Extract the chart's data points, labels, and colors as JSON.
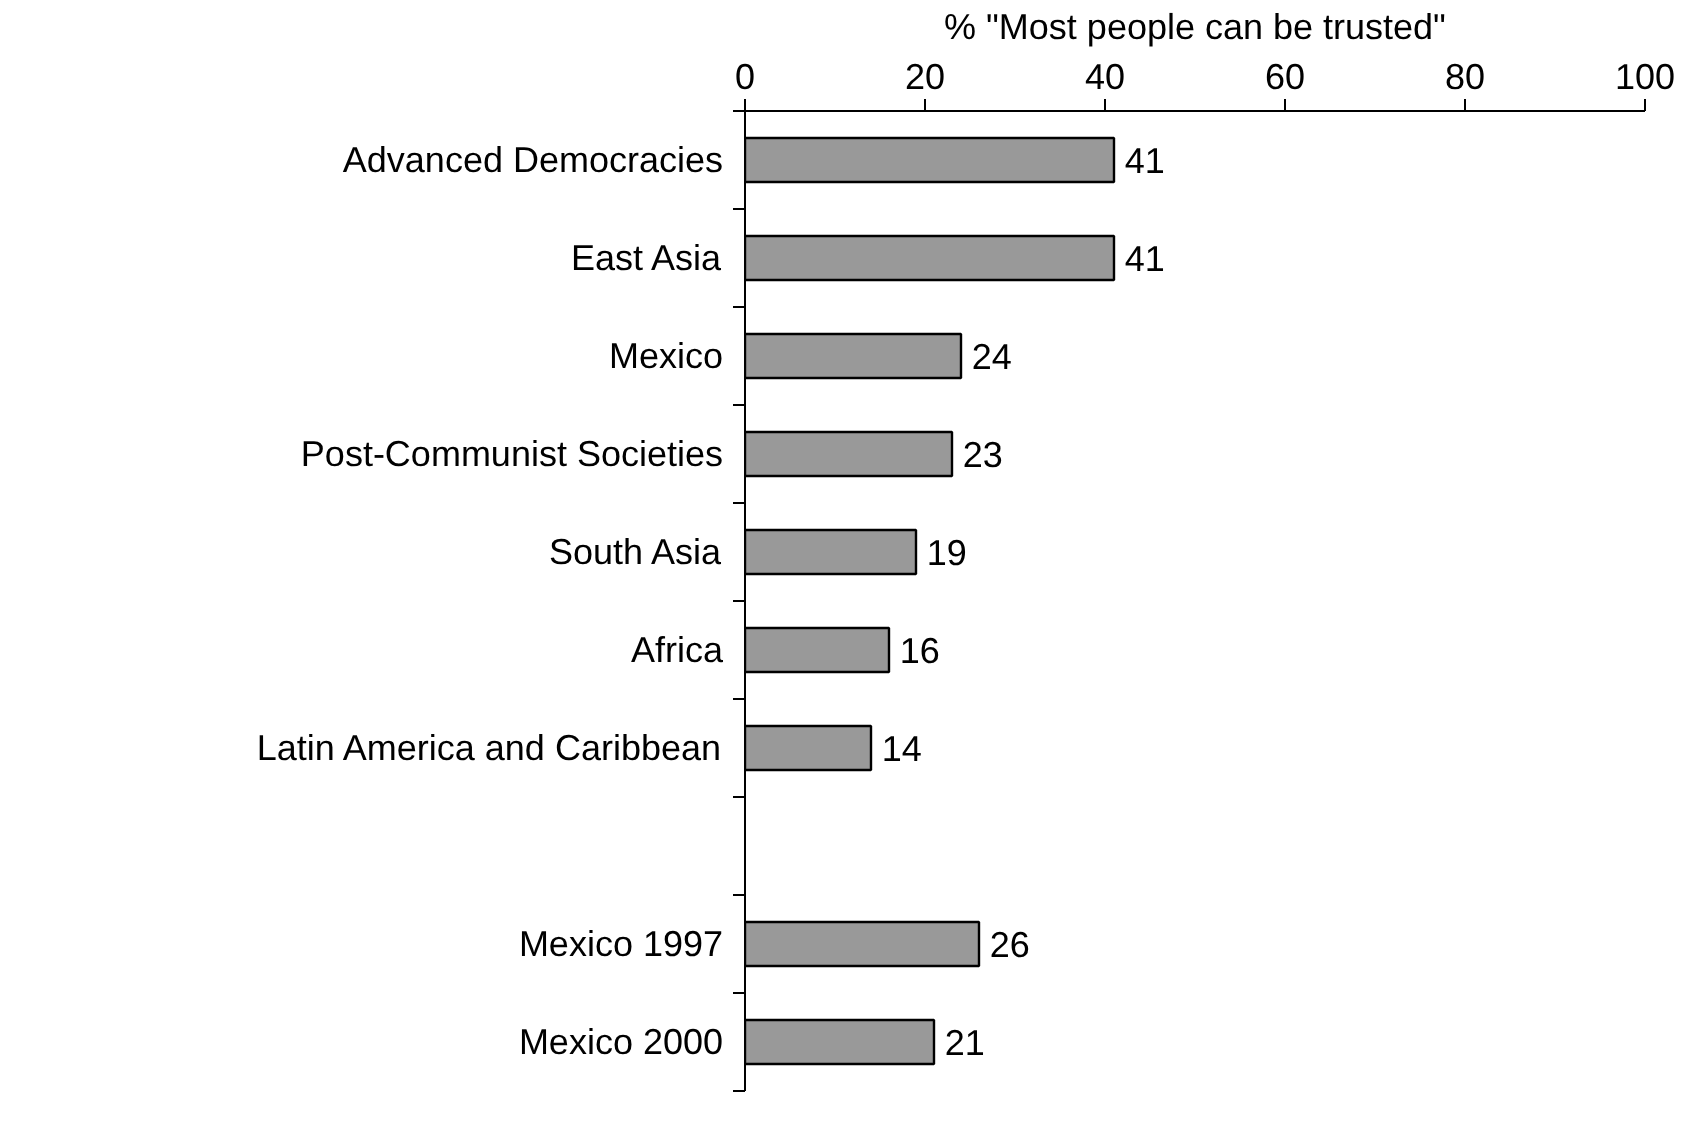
{
  "chart_data": {
    "type": "bar",
    "orientation": "horizontal",
    "xlabel": "% \"Most people can be trusted\"",
    "categories": [
      "Advanced Democracies",
      "East Asia",
      "Mexico",
      "Post-Communist Societies",
      "South Asia",
      "Africa",
      "Latin America and Caribbean",
      null,
      "Mexico 1997",
      "Mexico 2000"
    ],
    "values": [
      41,
      41,
      24,
      23,
      19,
      16,
      14,
      null,
      26,
      21
    ],
    "color": "#999999",
    "xlim": [
      0,
      100
    ],
    "xticks": [
      0,
      20,
      40,
      60,
      80,
      100
    ],
    "data_labels": true,
    "grid": false
  }
}
